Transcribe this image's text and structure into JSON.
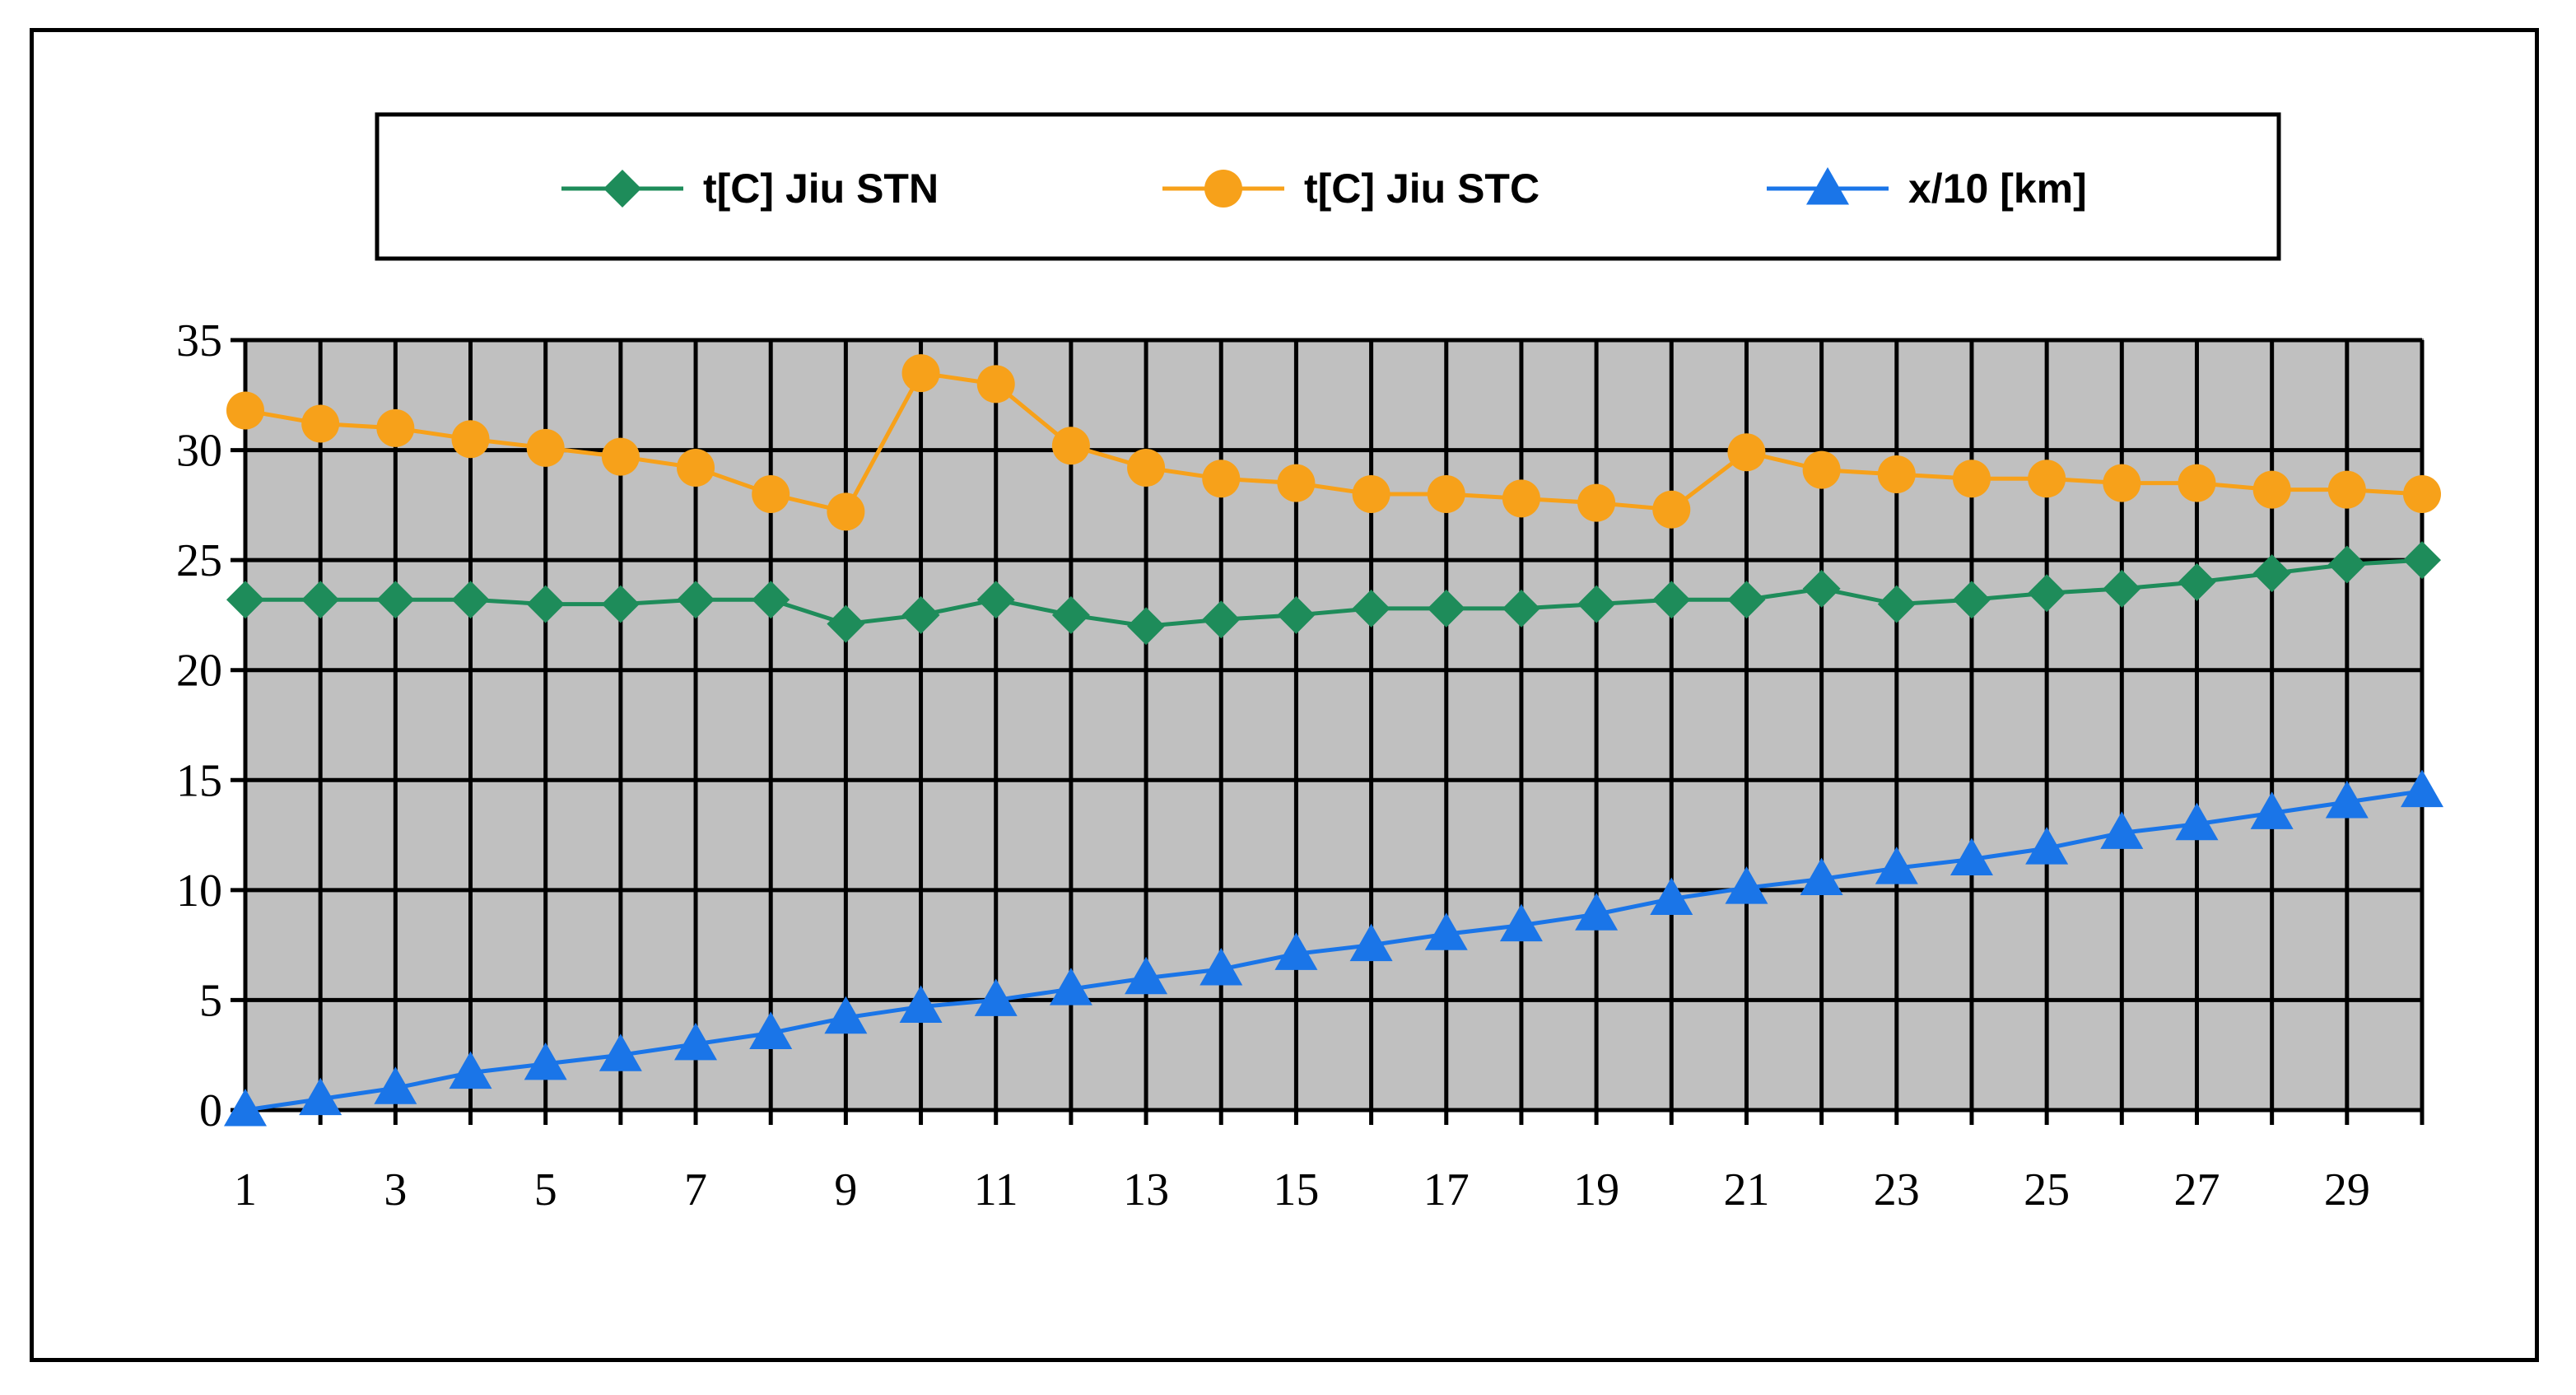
{
  "chart_data": {
    "type": "line",
    "title": "",
    "xlabel": "",
    "ylabel": "",
    "x": [
      1,
      2,
      3,
      4,
      5,
      6,
      7,
      8,
      9,
      10,
      11,
      12,
      13,
      14,
      15,
      16,
      17,
      18,
      19,
      20,
      21,
      22,
      23,
      24,
      25,
      26,
      27,
      28,
      29,
      30
    ],
    "x_tick_labels": [
      "1",
      "3",
      "5",
      "7",
      "9",
      "11",
      "13",
      "15",
      "17",
      "19",
      "21",
      "23",
      "25",
      "27",
      "29"
    ],
    "y_tick_labels": [
      "0",
      "5",
      "10",
      "15",
      "20",
      "25",
      "30",
      "35"
    ],
    "ylim": [
      0,
      35
    ],
    "grid": true,
    "legend_position": "top",
    "plot_background": "#c0c0c0",
    "series": [
      {
        "name": "t[C] Jiu STN",
        "color": "#1e8c5a",
        "marker": "diamond",
        "values": [
          23.2,
          23.2,
          23.2,
          23.2,
          23.0,
          23.0,
          23.2,
          23.2,
          22.1,
          22.5,
          23.2,
          22.5,
          22.0,
          22.3,
          22.5,
          22.8,
          22.8,
          22.8,
          23.0,
          23.2,
          23.2,
          23.7,
          23.0,
          23.2,
          23.5,
          23.7,
          24.0,
          24.4,
          24.8,
          25.0
        ]
      },
      {
        "name": "t[C] Jiu STC",
        "color": "#f7a11a",
        "marker": "circle",
        "values": [
          31.8,
          31.2,
          31.0,
          30.5,
          30.1,
          29.7,
          29.2,
          28.0,
          27.2,
          33.5,
          33.0,
          30.2,
          29.2,
          28.7,
          28.5,
          28.0,
          28.0,
          27.8,
          27.6,
          27.3,
          29.9,
          29.1,
          28.9,
          28.7,
          28.7,
          28.5,
          28.5,
          28.2,
          28.2,
          28.0
        ]
      },
      {
        "name": "x/10 [km]",
        "color": "#1a75e8",
        "marker": "triangle",
        "values": [
          0,
          0.5,
          1.0,
          1.7,
          2.1,
          2.5,
          3.0,
          3.5,
          4.2,
          4.7,
          5.0,
          5.5,
          6.0,
          6.4,
          7.1,
          7.5,
          8.0,
          8.4,
          8.9,
          9.6,
          10.1,
          10.5,
          11.0,
          11.4,
          11.9,
          12.6,
          13.0,
          13.5,
          14.0,
          14.5
        ]
      }
    ]
  }
}
